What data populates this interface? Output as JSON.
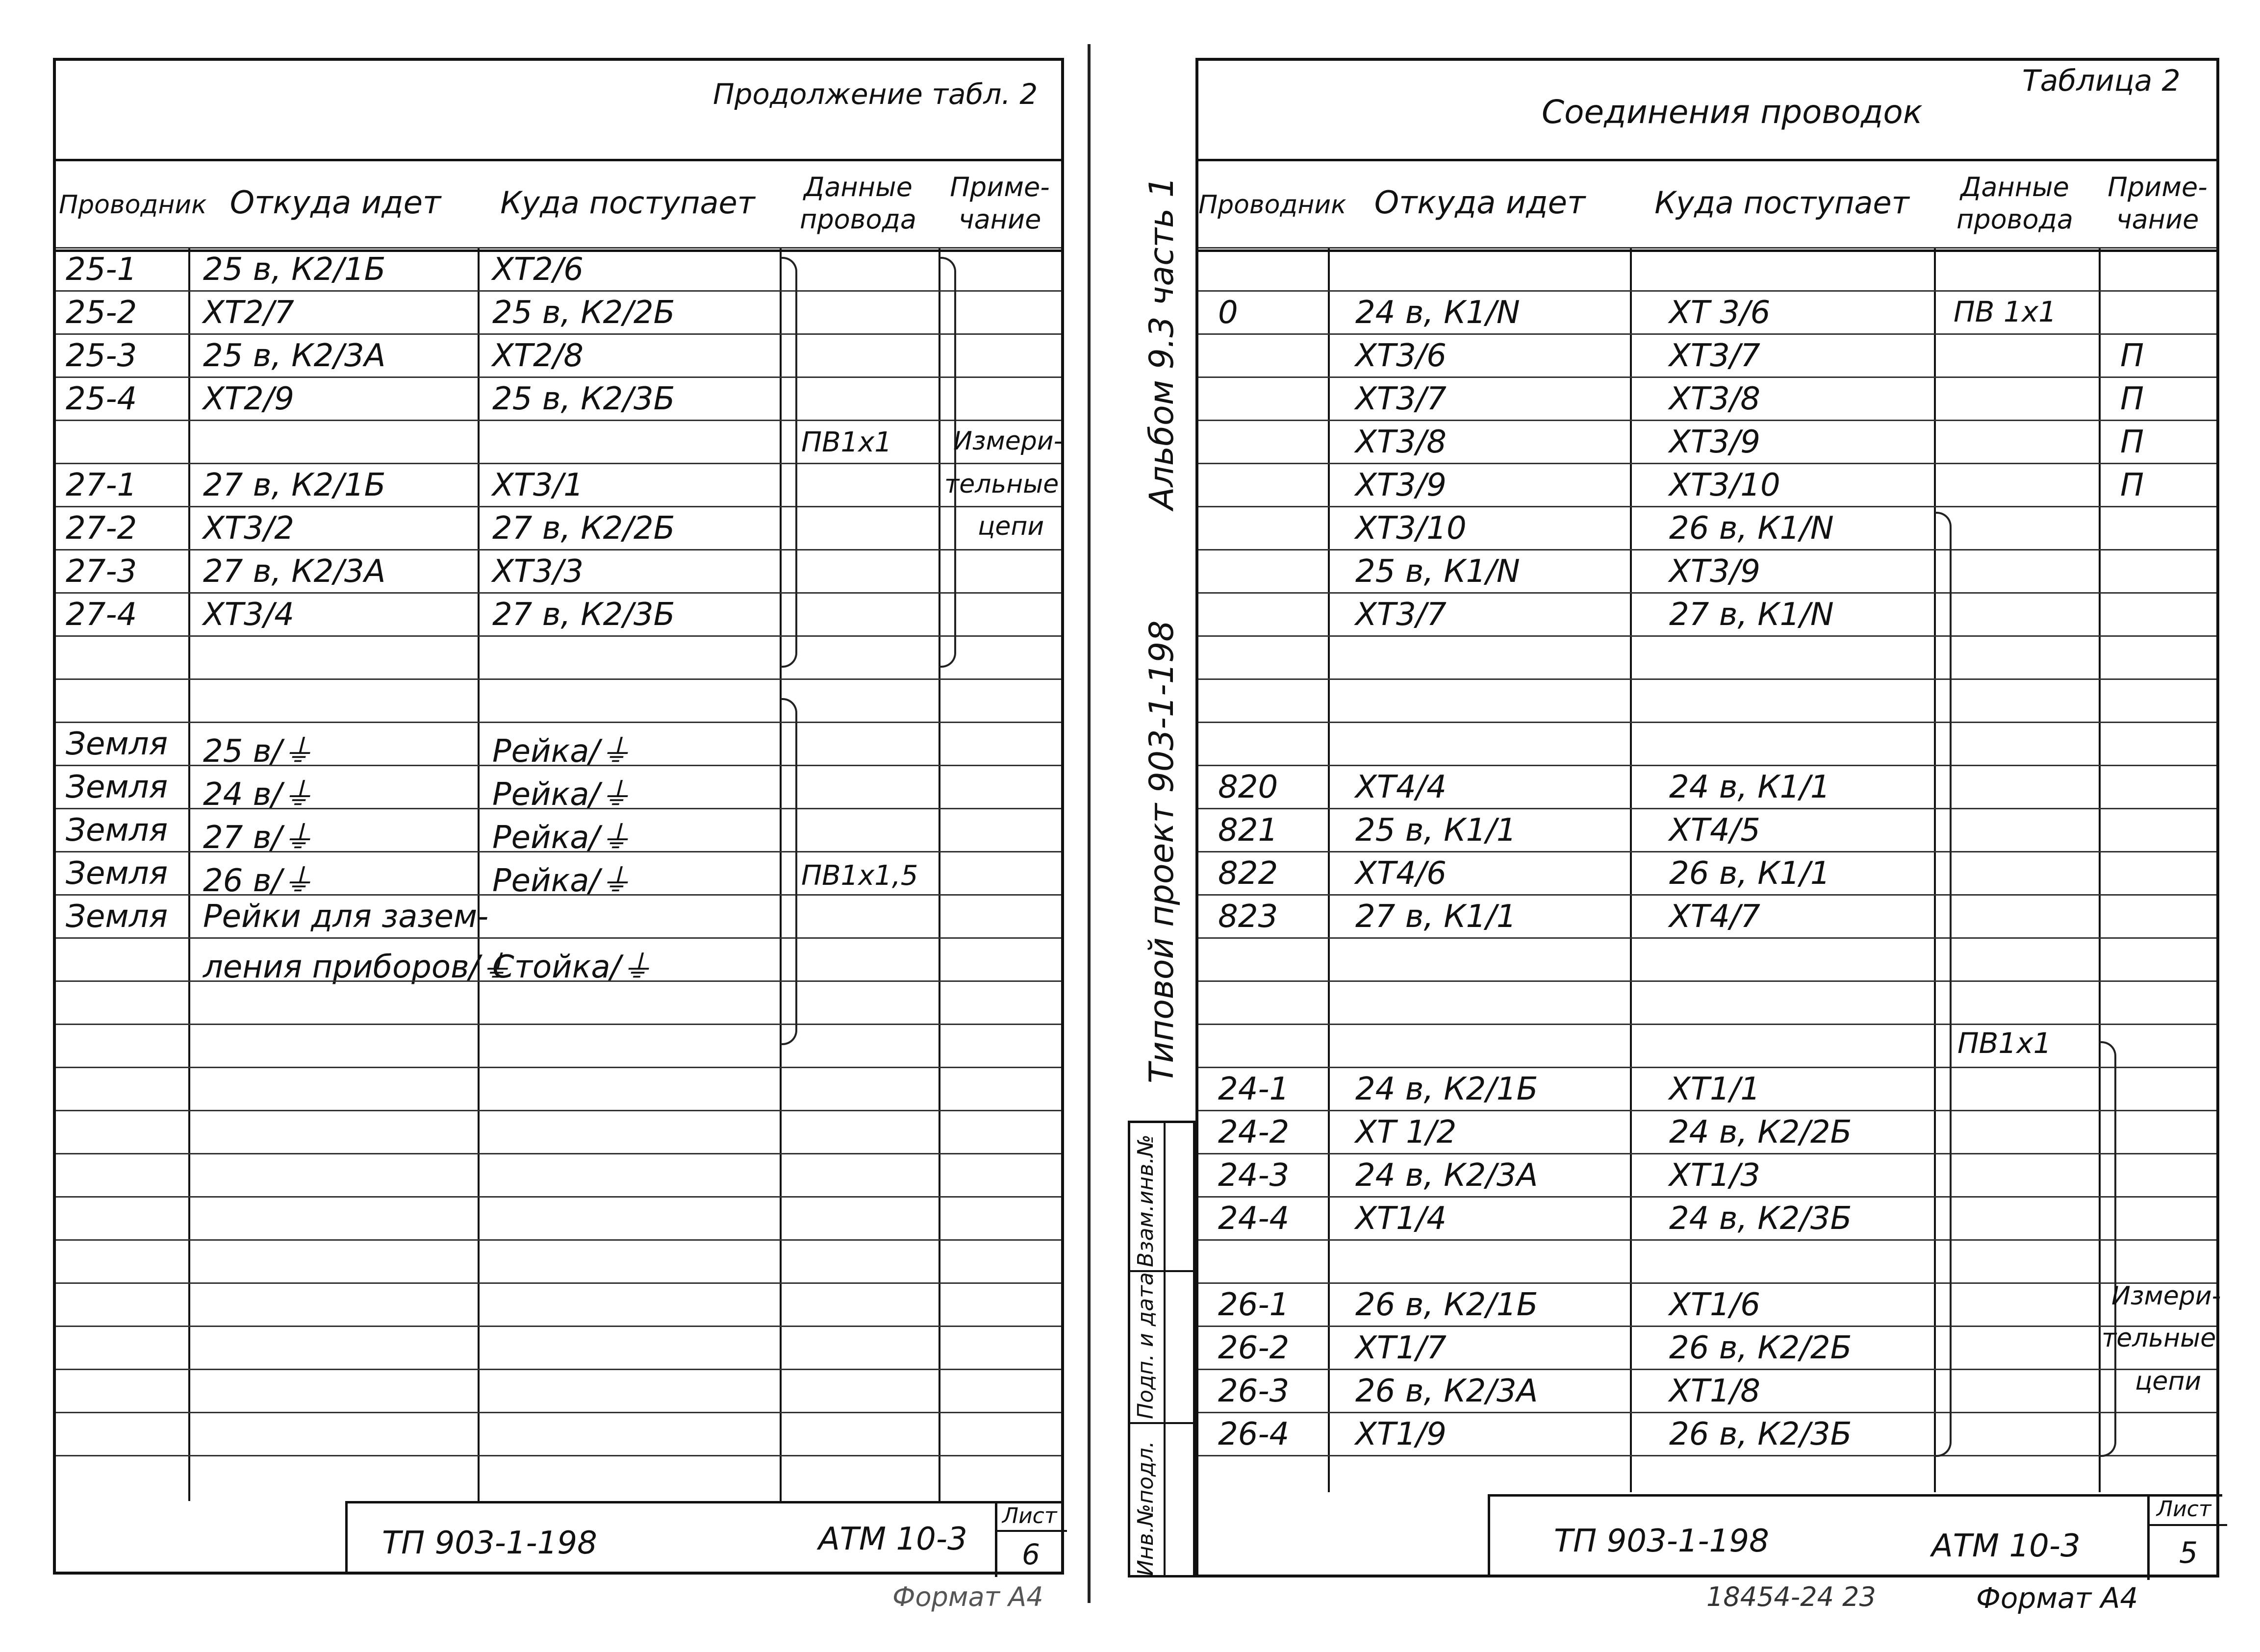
{
  "left": {
    "continuation": "Продолжение табл. 2",
    "headers": [
      "Проводник",
      "Откуда идет",
      "Куда поступает",
      "Данные провода",
      "Приме-чание"
    ],
    "rows": [
      [
        "25-1",
        "25 в, К2/1Б",
        "ХТ2/6"
      ],
      [
        "25-2",
        "ХТ2/7",
        "25 в, К2/2Б"
      ],
      [
        "25-3",
        "25 в, К2/3А",
        "ХТ2/8"
      ],
      [
        "25-4",
        "ХТ2/9",
        "25 в, К2/3Б"
      ],
      [
        "",
        "",
        ""
      ],
      [
        "27-1",
        "27 в, К2/1Б",
        "ХТ3/1"
      ],
      [
        "27-2",
        "ХТ3/2",
        "27 в, К2/2Б"
      ],
      [
        "27-3",
        "27 в, К2/3А",
        "ХТ3/3"
      ],
      [
        "27-4",
        "ХТ3/4",
        "27 в, К2/3Б"
      ],
      [
        "",
        "",
        ""
      ],
      [
        "",
        "",
        ""
      ],
      [
        "Земля",
        "25 в/⏚",
        "Рейка/⏚"
      ],
      [
        "Земля",
        "24 в/⏚",
        "Рейка/⏚"
      ],
      [
        "Земля",
        "27 в/⏚",
        "Рейка/⏚"
      ],
      [
        "Земля",
        "26 в/⏚",
        "Рейка/⏚"
      ],
      [
        "Земля",
        "Рейки для зазем-",
        ""
      ],
      [
        "",
        "ления приборов/⏚",
        "Стойка/⏚"
      ]
    ],
    "wire1": "ПВ1х1",
    "wire2": "ПВ1х1,5",
    "note": [
      "Измери-",
      "тельные",
      "цепи"
    ],
    "stamp_code": "ТП 903-1-198",
    "stamp_doc": "АТМ 10-3",
    "sheet_label": "Лист",
    "sheet_no": "6",
    "format": "Формат А4"
  },
  "right": {
    "table_no": "Таблица 2",
    "title": "Соединения проводок",
    "headers": [
      "Проводник",
      "Откуда идет",
      "Куда поступает",
      "Данные провода",
      "Приме-чание"
    ],
    "rows": [
      [
        "",
        "",
        "",
        ""
      ],
      [
        "0",
        "24 в, К1/N",
        "ХТ 3/6",
        ""
      ],
      [
        "",
        "ХТ3/6",
        "ХТ3/7",
        "П"
      ],
      [
        "",
        "ХТ3/7",
        "ХТ3/8",
        "П"
      ],
      [
        "",
        "ХТ3/8",
        "ХТ3/9",
        "П"
      ],
      [
        "",
        "ХТ3/9",
        "ХТ3/10",
        "П"
      ],
      [
        "",
        "ХТ3/10",
        "26 в, К1/N",
        ""
      ],
      [
        "",
        "25 в, К1/N",
        "ХТ3/9",
        ""
      ],
      [
        "",
        "ХТ3/7",
        "27 в, К1/N",
        ""
      ],
      [
        "",
        "",
        "",
        ""
      ],
      [
        "",
        "",
        "",
        ""
      ],
      [
        "",
        "",
        "",
        ""
      ],
      [
        "820",
        "ХТ4/4",
        "24 в, К1/1",
        ""
      ],
      [
        "821",
        "25 в, К1/1",
        "ХТ4/5",
        ""
      ],
      [
        "822",
        "ХТ4/6",
        "26 в, К1/1",
        ""
      ],
      [
        "823",
        "27 в, К1/1",
        "ХТ4/7",
        ""
      ],
      [
        "",
        "",
        "",
        ""
      ],
      [
        "",
        "",
        "",
        ""
      ],
      [
        "",
        "",
        "",
        ""
      ],
      [
        "24-1",
        "24 в, К2/1Б",
        "ХТ1/1",
        ""
      ],
      [
        "24-2",
        "ХТ 1/2",
        "24 в, К2/2Б",
        ""
      ],
      [
        "24-3",
        "24 в, К2/3А",
        "ХТ1/3",
        ""
      ],
      [
        "24-4",
        "ХТ1/4",
        "24 в, К2/3Б",
        ""
      ],
      [
        "",
        "",
        "",
        ""
      ],
      [
        "26-1",
        "26 в, К2/1Б",
        "ХТ1/6",
        ""
      ],
      [
        "26-2",
        "ХТ1/7",
        "26 в, К2/2Б",
        ""
      ],
      [
        "26-3",
        "26 в, К2/3А",
        "ХТ1/8",
        ""
      ],
      [
        "26-4",
        "ХТ1/9",
        "26 в, К2/3Б",
        ""
      ]
    ],
    "wire_top": "ПВ 1х1",
    "wire_mid": "ПВ1х1",
    "note": [
      "Измери-",
      "тельные",
      "цепи"
    ],
    "side_album": "Альбом 9.3 часть 1",
    "side_project": "Типовой проект 903-1-198",
    "side_cols": [
      "Инв.№подл.",
      "Подп. и дата",
      "Взам.инв.№"
    ],
    "stamp_code": "ТП 903-1-198",
    "stamp_doc": "АТМ 10-3",
    "sheet_label": "Лист",
    "sheet_no": "5",
    "bottom_code": "18454-24  23",
    "format": "Формат А4"
  }
}
